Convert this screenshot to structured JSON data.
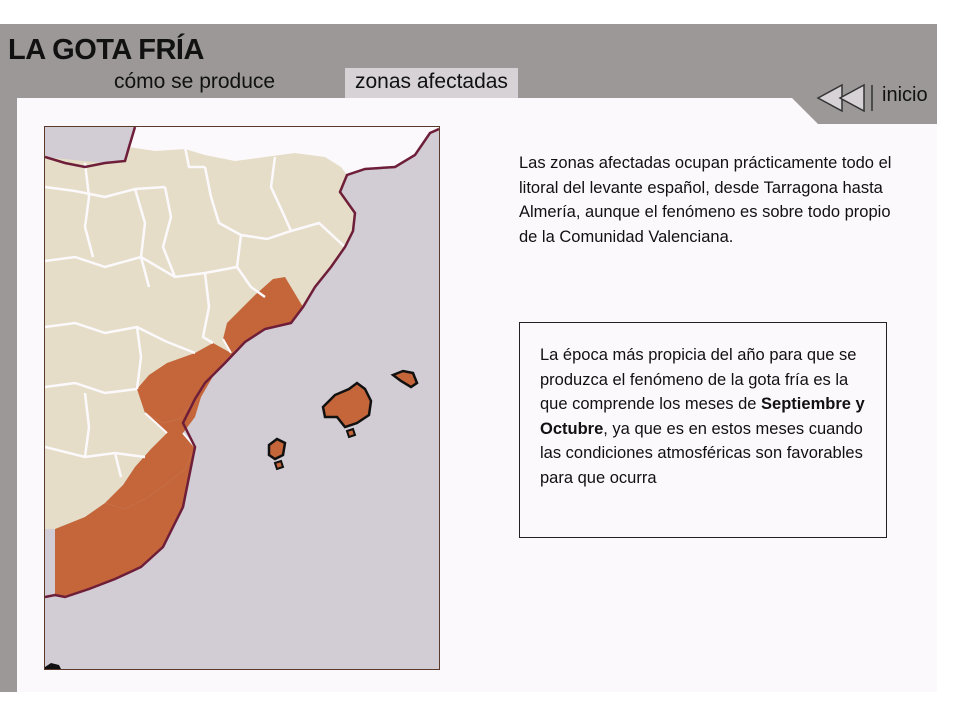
{
  "header": {
    "title": "LA GOTA FRÍA",
    "tabs": [
      {
        "label": "cómo se produce",
        "active": false
      },
      {
        "label": "zonas afectadas",
        "active": true
      }
    ]
  },
  "nav": {
    "inicio_label": "inicio",
    "inicio_icon": "rewind-icon"
  },
  "content": {
    "intro": "Las zonas afectadas ocupan prácticamente todo el litoral del levante español, desde Tarragona hasta Almería, aunque el fenómeno es sobre todo propio de la Comunidad Valenciana.",
    "info_before": "La época más propicia del año para que se produzca el fenómeno de la gota fría es la que comprende los meses de ",
    "info_bold": "Septiembre y Octubre",
    "info_after": ", ya que es en estos meses cuando las condiciones atmosféricas son favorables para que ocurra"
  },
  "colors": {
    "frame": "#9c9898",
    "panel": "#fcf9fc",
    "land": "#e5ddc8",
    "sea": "#d2ccd4",
    "affected": "#c4663a",
    "border": "#6e1e38"
  }
}
